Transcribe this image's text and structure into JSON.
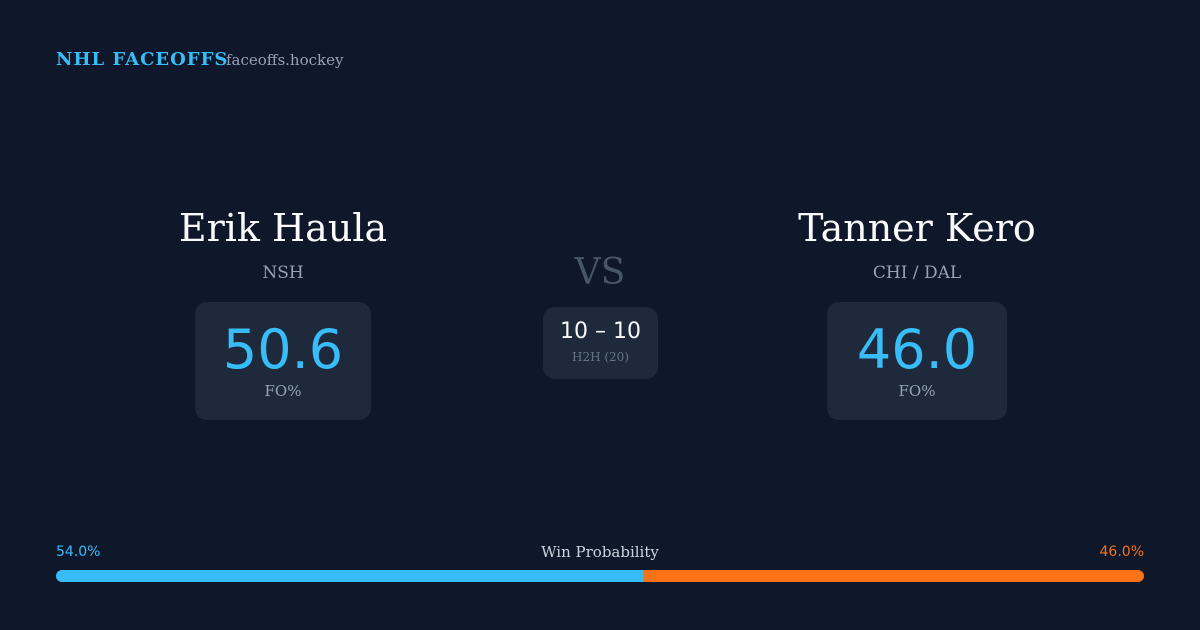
{
  "header": {
    "brand": "NHL FACEOFFS",
    "site": "faceoffs.hockey"
  },
  "players": [
    {
      "name": "Erik Haula",
      "team": "NSH",
      "fo_pct": "50.6",
      "fo_label": "FO%"
    },
    {
      "name": "Tanner Kero",
      "team": "CHI / DAL",
      "fo_pct": "46.0",
      "fo_label": "FO%"
    }
  ],
  "vs": "VS",
  "h2h": {
    "score": "10 – 10",
    "label": "H2H (20)"
  },
  "win_probability": {
    "title": "Win Probability",
    "left": {
      "value": 54.0,
      "label": "54.0%",
      "color": "#38bdf8"
    },
    "right": {
      "value": 46.0,
      "label": "46.0%",
      "color": "#f97316"
    }
  }
}
